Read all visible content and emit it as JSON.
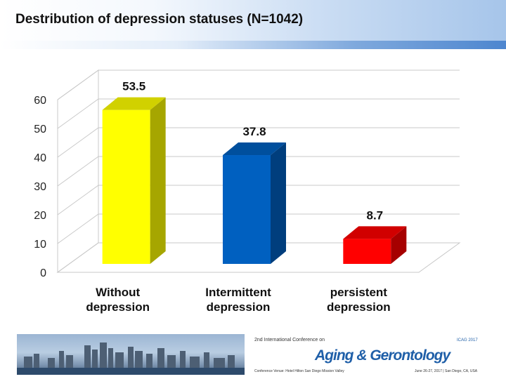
{
  "header": {
    "title": "Destribution of depression statuses (N=1042)"
  },
  "chart_data": {
    "type": "bar",
    "title": "Destribution of depression statuses (N=1042)",
    "categories": [
      "Without depression",
      "Intermittent depression",
      "persistent depression"
    ],
    "category_lines": [
      [
        "Without",
        "depression"
      ],
      [
        "Intermittent",
        "depression"
      ],
      [
        "persistent",
        "depression"
      ]
    ],
    "values": [
      53.5,
      37.8,
      8.7
    ],
    "value_labels": [
      "53.5",
      "37.8",
      "8.7"
    ],
    "bar_colors": [
      "#ffff00",
      "#0060c0",
      "#ff0000"
    ],
    "yticks": [
      0,
      10,
      20,
      30,
      40,
      50,
      60
    ],
    "ylim": [
      0,
      60
    ],
    "grid": true,
    "style": "3d-columns",
    "xlabel": "",
    "ylabel": ""
  },
  "footer": {
    "edition": "2nd International Conference on",
    "name": "Aging & Gerontology",
    "acronym": "ICAG 2017",
    "venue": "Conference Venue: Hotel Hilton San Diego Mission Valley",
    "dates": "June 26-27, 2017 | San Diego, CA, USA"
  }
}
